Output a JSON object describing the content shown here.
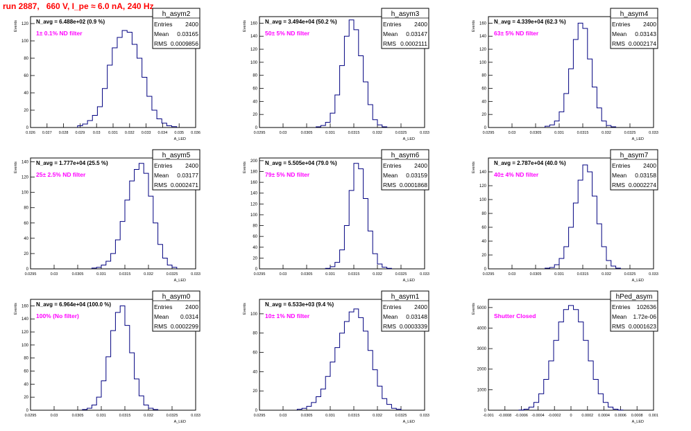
{
  "run_title": "run 2887,   660 V, I_pe ≈ 6.0 nA, 240 Hz",
  "stats_labels": {
    "entries": "Entries",
    "mean": "Mean",
    "rms": "RMS"
  },
  "chart_data": [
    {
      "type": "histogram",
      "name": "h_asym2",
      "navg": "N_avg = 6.488e+02 (0.9 %)",
      "filter": "1± 0.1% ND filter",
      "entries": "2400",
      "mean": "0.03165",
      "rms": "0.0009856",
      "ylabel": "Events",
      "xlabel": "A_LED",
      "xlim": [
        0.026,
        0.036
      ],
      "ylim": [
        0,
        128
      ],
      "xticks": [
        0.026,
        0.027,
        0.028,
        0.029,
        0.03,
        0.031,
        0.032,
        0.033,
        0.034,
        0.035,
        0.036
      ],
      "xtick_labels": [
        "0.026",
        "0.027",
        "0.028",
        "0.029",
        "0.03",
        "0.031",
        "0.032",
        "0.033",
        "0.034",
        "0.035",
        "0.036"
      ],
      "yticks": [
        0,
        20,
        40,
        60,
        80,
        100,
        120
      ],
      "ytick_labels": [
        "0",
        "20",
        "40",
        "60",
        "80",
        "100",
        "120"
      ],
      "bin_centers": [
        0.029,
        0.0293,
        0.0296,
        0.0299,
        0.0302,
        0.0305,
        0.0308,
        0.0311,
        0.0314,
        0.0317,
        0.032,
        0.0323,
        0.0326,
        0.0329,
        0.0332,
        0.0335,
        0.0338,
        0.0341,
        0.0344,
        0.0347
      ],
      "counts": [
        2,
        4,
        8,
        14,
        24,
        45,
        72,
        92,
        104,
        112,
        110,
        96,
        80,
        58,
        36,
        20,
        10,
        5,
        2,
        1
      ]
    },
    {
      "type": "histogram",
      "name": "h_asym3",
      "navg": "N_avg = 3.494e+04 (50.2 %)",
      "filter": "50± 5% ND filter",
      "entries": "2400",
      "mean": "0.03147",
      "rms": "0.0002111",
      "ylabel": "Events",
      "xlabel": "A_LED",
      "xlim": [
        0.0295,
        0.033
      ],
      "ylim": [
        0,
        170
      ],
      "xticks": [
        0.0295,
        0.03,
        0.0305,
        0.031,
        0.0315,
        0.032,
        0.0325,
        0.033
      ],
      "xtick_labels": [
        "0.0295",
        "0.03",
        "0.0305",
        "0.031",
        "0.0315",
        "0.032",
        "0.0325",
        "0.033"
      ],
      "yticks": [
        0,
        20,
        40,
        60,
        80,
        100,
        120,
        140,
        160
      ],
      "ytick_labels": [
        "0",
        "20",
        "40",
        "60",
        "80",
        "100",
        "120",
        "140",
        "160"
      ],
      "bin_centers": [
        0.03075,
        0.03085,
        0.03095,
        0.03105,
        0.03115,
        0.03125,
        0.03135,
        0.03145,
        0.03155,
        0.03165,
        0.03175,
        0.03185,
        0.03195,
        0.03205,
        0.03215
      ],
      "counts": [
        1,
        3,
        8,
        22,
        50,
        95,
        140,
        165,
        150,
        110,
        70,
        35,
        12,
        4,
        1
      ]
    },
    {
      "type": "histogram",
      "name": "h_asym4",
      "navg": "N_avg = 4.339e+04 (62.3 %)",
      "filter": "63± 5% ND filter",
      "entries": "2400",
      "mean": "0.03143",
      "rms": "0.0002174",
      "ylabel": "Events",
      "xlabel": "A_LED",
      "xlim": [
        0.0295,
        0.033
      ],
      "ylim": [
        0,
        170
      ],
      "xticks": [
        0.0295,
        0.03,
        0.0305,
        0.031,
        0.0315,
        0.032,
        0.0325,
        0.033
      ],
      "xtick_labels": [
        "0.0295",
        "0.03",
        "0.0305",
        "0.031",
        "0.0315",
        "0.032",
        "0.0325",
        "0.033"
      ],
      "yticks": [
        0,
        20,
        40,
        60,
        80,
        100,
        120,
        140,
        160
      ],
      "ytick_labels": [
        "0",
        "20",
        "40",
        "60",
        "80",
        "100",
        "120",
        "140",
        "160"
      ],
      "bin_centers": [
        0.03075,
        0.03085,
        0.03095,
        0.03105,
        0.03115,
        0.03125,
        0.03135,
        0.03145,
        0.03155,
        0.03165,
        0.03175,
        0.03185,
        0.03195,
        0.03205,
        0.03215
      ],
      "counts": [
        2,
        4,
        10,
        24,
        52,
        90,
        135,
        160,
        152,
        105,
        62,
        30,
        10,
        3,
        1
      ]
    },
    {
      "type": "histogram",
      "name": "h_asym5",
      "navg": "N_avg = 1.777e+04 (25.5 %)",
      "filter": "25± 2.5% ND filter",
      "entries": "2400",
      "mean": "0.03177",
      "rms": "0.0002471",
      "ylabel": "Events",
      "xlabel": "A_LED",
      "xlim": [
        0.0295,
        0.033
      ],
      "ylim": [
        0,
        145
      ],
      "xticks": [
        0.0295,
        0.03,
        0.0305,
        0.031,
        0.0315,
        0.032,
        0.0325,
        0.033
      ],
      "xtick_labels": [
        "0.0295",
        "0.03",
        "0.0305",
        "0.031",
        "0.0315",
        "0.032",
        "0.0325",
        "0.033"
      ],
      "yticks": [
        0,
        20,
        40,
        60,
        80,
        100,
        120,
        140
      ],
      "ytick_labels": [
        "0",
        "20",
        "40",
        "60",
        "80",
        "100",
        "120",
        "140"
      ],
      "bin_centers": [
        0.03085,
        0.03095,
        0.03105,
        0.03115,
        0.03125,
        0.03135,
        0.03145,
        0.03155,
        0.03165,
        0.03175,
        0.03185,
        0.03195,
        0.03205,
        0.03215,
        0.03225,
        0.03235,
        0.03245,
        0.03255
      ],
      "counts": [
        1,
        2,
        5,
        10,
        20,
        38,
        62,
        90,
        115,
        130,
        138,
        125,
        95,
        60,
        32,
        14,
        5,
        2
      ]
    },
    {
      "type": "histogram",
      "name": "h_asym6",
      "navg": "N_avg = 5.505e+04 (79.0 %)",
      "filter": "79± 5% ND filter",
      "entries": "2400",
      "mean": "0.03159",
      "rms": "0.0001868",
      "ylabel": "Events",
      "xlabel": "A_LED",
      "xlim": [
        0.0295,
        0.033
      ],
      "ylim": [
        0,
        205
      ],
      "xticks": [
        0.0295,
        0.03,
        0.0305,
        0.031,
        0.0315,
        0.032,
        0.0325,
        0.033
      ],
      "xtick_labels": [
        "0.0295",
        "0.03",
        "0.0305",
        "0.031",
        "0.0315",
        "0.032",
        "0.0325",
        "0.033"
      ],
      "yticks": [
        0,
        20,
        40,
        60,
        80,
        100,
        120,
        140,
        160,
        180,
        200
      ],
      "ytick_labels": [
        "0",
        "20",
        "40",
        "60",
        "80",
        "100",
        "120",
        "140",
        "160",
        "180",
        "200"
      ],
      "bin_centers": [
        0.03095,
        0.03105,
        0.03115,
        0.03125,
        0.03135,
        0.03145,
        0.03155,
        0.03165,
        0.03175,
        0.03185,
        0.03195,
        0.03205,
        0.03215,
        0.03225
      ],
      "counts": [
        1,
        4,
        12,
        35,
        80,
        145,
        195,
        185,
        130,
        70,
        28,
        9,
        3,
        1
      ]
    },
    {
      "type": "histogram",
      "name": "h_asym7",
      "navg": "N_avg = 2.787e+04 (40.0 %)",
      "filter": "40± 4% ND filter",
      "entries": "2400",
      "mean": "0.03158",
      "rms": "0.0002274",
      "ylabel": "Events",
      "xlabel": "A_LED",
      "xlim": [
        0.0295,
        0.033
      ],
      "ylim": [
        0,
        160
      ],
      "xticks": [
        0.0295,
        0.03,
        0.0305,
        0.031,
        0.0315,
        0.032,
        0.0325,
        0.033
      ],
      "xtick_labels": [
        "0.0295",
        "0.03",
        "0.0305",
        "0.031",
        "0.0315",
        "0.032",
        "0.0325",
        "0.033"
      ],
      "yticks": [
        0,
        20,
        40,
        60,
        80,
        100,
        120,
        140
      ],
      "ytick_labels": [
        "0",
        "20",
        "40",
        "60",
        "80",
        "100",
        "120",
        "140"
      ],
      "bin_centers": [
        0.03075,
        0.03085,
        0.03095,
        0.03105,
        0.03115,
        0.03125,
        0.03135,
        0.03145,
        0.03155,
        0.03165,
        0.03175,
        0.03185,
        0.03195,
        0.03205,
        0.03215,
        0.03225
      ],
      "counts": [
        1,
        2,
        6,
        15,
        32,
        60,
        95,
        128,
        150,
        140,
        105,
        65,
        32,
        12,
        4,
        1
      ]
    },
    {
      "type": "histogram",
      "name": "h_asym0",
      "navg": "N_avg = 6.964e+04 (100.0 %)",
      "filter": "100% (No filter)",
      "entries": "2400",
      "mean": "0.0314",
      "rms": "0.0002299",
      "ylabel": "Events",
      "xlabel": "A_LED",
      "xlim": [
        0.0295,
        0.033
      ],
      "ylim": [
        0,
        170
      ],
      "xticks": [
        0.0295,
        0.03,
        0.0305,
        0.031,
        0.0315,
        0.032,
        0.0325,
        0.033
      ],
      "xtick_labels": [
        "0.0295",
        "0.03",
        "0.0305",
        "0.031",
        "0.0315",
        "0.032",
        "0.0325",
        "0.033"
      ],
      "yticks": [
        0,
        20,
        40,
        60,
        80,
        100,
        120,
        140,
        160
      ],
      "ytick_labels": [
        "0",
        "20",
        "40",
        "60",
        "80",
        "100",
        "120",
        "140",
        "160"
      ],
      "bin_centers": [
        0.03065,
        0.03075,
        0.03085,
        0.03095,
        0.03105,
        0.03115,
        0.03125,
        0.03135,
        0.03145,
        0.03155,
        0.03165,
        0.03175,
        0.03185,
        0.03195,
        0.03205,
        0.03215
      ],
      "counts": [
        1,
        3,
        8,
        20,
        45,
        82,
        122,
        150,
        160,
        130,
        88,
        48,
        22,
        8,
        3,
        1
      ]
    },
    {
      "type": "histogram",
      "name": "h_asym1",
      "navg": "N_avg = 6.533e+03 (9.4 %)",
      "filter": "10± 1% ND filter",
      "entries": "2400",
      "mean": "0.03148",
      "rms": "0.0003339",
      "ylabel": "Events",
      "xlabel": "A_LED",
      "xlim": [
        0.0295,
        0.033
      ],
      "ylim": [
        0,
        115
      ],
      "xticks": [
        0.0295,
        0.03,
        0.0305,
        0.031,
        0.0315,
        0.032,
        0.0325,
        0.033
      ],
      "xtick_labels": [
        "0.0295",
        "0.03",
        "0.0305",
        "0.031",
        "0.0315",
        "0.032",
        "0.0325",
        "0.033"
      ],
      "yticks": [
        0,
        20,
        40,
        60,
        80,
        100
      ],
      "ytick_labels": [
        "0",
        "20",
        "40",
        "60",
        "80",
        "100"
      ],
      "bin_centers": [
        0.03035,
        0.03045,
        0.03055,
        0.03065,
        0.03075,
        0.03085,
        0.03095,
        0.03105,
        0.03115,
        0.03125,
        0.03135,
        0.03145,
        0.03155,
        0.03165,
        0.03175,
        0.03185,
        0.03195,
        0.03205,
        0.03215,
        0.03225,
        0.03235,
        0.03245
      ],
      "counts": [
        1,
        2,
        4,
        8,
        14,
        22,
        35,
        50,
        65,
        80,
        92,
        102,
        105,
        96,
        82,
        62,
        42,
        25,
        12,
        6,
        2,
        1
      ]
    },
    {
      "type": "histogram",
      "name": "hPed_asym",
      "navg": "",
      "filter": "Shutter Closed",
      "entries": "102636",
      "mean": "1.72e-06",
      "rms": "0.0001623",
      "ylabel": "Events",
      "xlabel": "A_LED",
      "xlim": [
        -0.001,
        0.001
      ],
      "ylim": [
        0,
        5400
      ],
      "xticks": [
        -0.001,
        -0.0008,
        -0.0006,
        -0.0004,
        -0.0002,
        0,
        0.0002,
        0.0004,
        0.0006,
        0.0008,
        0.001
      ],
      "xtick_labels": [
        "-0.001",
        "-0.0008",
        "-0.0006",
        "-0.0004",
        "-0.0002",
        "0",
        "0.0002",
        "0.0004",
        "0.0006",
        "0.0008",
        "0.001"
      ],
      "yticks": [
        0,
        1000,
        2000,
        3000,
        4000,
        5000
      ],
      "ytick_labels": [
        "0",
        "1000",
        "2000",
        "3000",
        "4000",
        "5000"
      ],
      "bin_centers": [
        -0.0006,
        -0.00054,
        -0.00048,
        -0.00042,
        -0.00036,
        -0.0003,
        -0.00024,
        -0.00018,
        -0.00012,
        -6e-05,
        0,
        6e-05,
        0.00012,
        0.00018,
        0.00024,
        0.0003,
        0.00036,
        0.00042,
        0.00048,
        0.00054,
        0.0006
      ],
      "counts": [
        10,
        50,
        150,
        380,
        800,
        1500,
        2400,
        3400,
        4300,
        4900,
        5100,
        4900,
        4300,
        3400,
        2400,
        1500,
        800,
        380,
        150,
        50,
        10
      ]
    }
  ]
}
